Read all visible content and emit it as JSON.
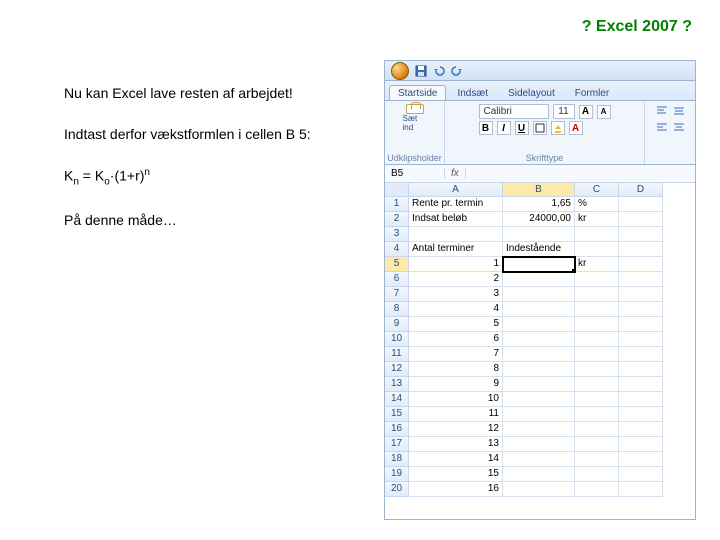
{
  "header": {
    "title": "? Excel 2007 ?",
    "color": "#008000"
  },
  "left": {
    "p1": "Nu kan Excel lave resten af arbejdet!",
    "p2": "Indtast derfor vækstformlen i cellen B 5:",
    "formula": {
      "lhs_base": "K",
      "lhs_sub": "n",
      "eq": " = ",
      "rhs_base": "K",
      "rhs_sub": "o",
      "mid": "·(1+r)",
      "rhs_sup": "n"
    },
    "p3": "På denne måde…"
  },
  "excel": {
    "tabs": [
      "Startside",
      "Indsæt",
      "Sidelayout",
      "Formler"
    ],
    "active_tab": 0,
    "groups": {
      "clipboard": "Udklipsholder",
      "font": "Skrifttype"
    },
    "clipboard_label": "Sæt ind",
    "font": {
      "name": "Calibri",
      "size": "11"
    },
    "namebox": "B5",
    "formula_bar": "",
    "columns": [
      "A",
      "B",
      "C",
      "D"
    ],
    "selected_col": "B",
    "selected_row": 5,
    "rows": [
      {
        "n": 1,
        "a": "Rente pr. termin",
        "b": "1,65",
        "c": "%",
        "d": ""
      },
      {
        "n": 2,
        "a": "Indsat beløb",
        "b": "24000,00",
        "c": "kr",
        "d": ""
      },
      {
        "n": 3,
        "a": "",
        "b": "",
        "c": "",
        "d": ""
      },
      {
        "n": 4,
        "a": "Antal terminer",
        "b": "Indestående",
        "c": "",
        "d": ""
      },
      {
        "n": 5,
        "a": "1",
        "b": "",
        "c": "kr",
        "d": ""
      },
      {
        "n": 6,
        "a": "2",
        "b": "",
        "c": "",
        "d": ""
      },
      {
        "n": 7,
        "a": "3",
        "b": "",
        "c": "",
        "d": ""
      },
      {
        "n": 8,
        "a": "4",
        "b": "",
        "c": "",
        "d": ""
      },
      {
        "n": 9,
        "a": "5",
        "b": "",
        "c": "",
        "d": ""
      },
      {
        "n": 10,
        "a": "6",
        "b": "",
        "c": "",
        "d": ""
      },
      {
        "n": 11,
        "a": "7",
        "b": "",
        "c": "",
        "d": ""
      },
      {
        "n": 12,
        "a": "8",
        "b": "",
        "c": "",
        "d": ""
      },
      {
        "n": 13,
        "a": "9",
        "b": "",
        "c": "",
        "d": ""
      },
      {
        "n": 14,
        "a": "10",
        "b": "",
        "c": "",
        "d": ""
      },
      {
        "n": 15,
        "a": "11",
        "b": "",
        "c": "",
        "d": ""
      },
      {
        "n": 16,
        "a": "12",
        "b": "",
        "c": "",
        "d": ""
      },
      {
        "n": 17,
        "a": "13",
        "b": "",
        "c": "",
        "d": ""
      },
      {
        "n": 18,
        "a": "14",
        "b": "",
        "c": "",
        "d": ""
      },
      {
        "n": 19,
        "a": "15",
        "b": "",
        "c": "",
        "d": ""
      },
      {
        "n": 20,
        "a": "16",
        "b": "",
        "c": "",
        "d": ""
      }
    ],
    "colors": {
      "ribbon_bg": "#f1f6fd",
      "border": "#9db4d1",
      "grid_line": "#d6e1f0",
      "header_bg_top": "#f3f7fd",
      "header_bg_bot": "#e2ebf8",
      "selected_hdr": "#ffe9a8"
    }
  }
}
